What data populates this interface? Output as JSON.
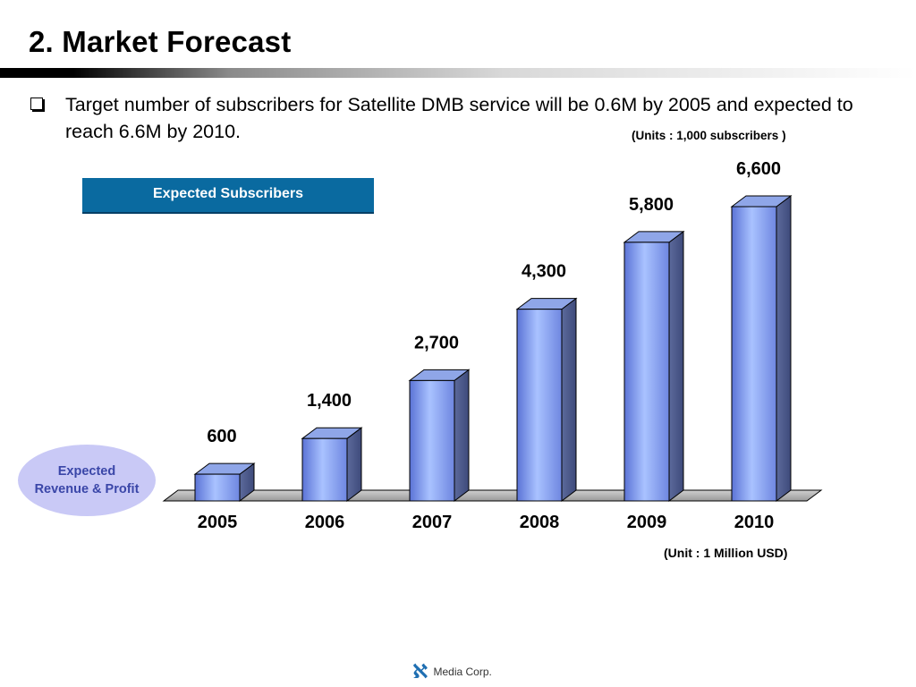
{
  "slide": {
    "title": "2.   Market Forecast",
    "bullet": "Target number of subscribers for Satellite DMB service will be 0.6M by 2005 and expected to reach 6.6M by 2010.",
    "units_top": "(Units : 1,000 subscribers )",
    "units_bottom": "(Unit : 1 Million USD)",
    "tab_label": "Expected Subscribers",
    "ellipse_label_line1": "Expected",
    "ellipse_label_line2": "Revenue & Profit",
    "logo_text": "Media Corp."
  },
  "colors": {
    "tab_bg": "#0a6aa0",
    "bar_front": "#7f9ff0",
    "bar_side": "#5a6aa0",
    "ellipse": "#c9c9f6"
  },
  "chart_data": {
    "type": "bar",
    "categories": [
      "2005",
      "2006",
      "2007",
      "2008",
      "2009",
      "2010"
    ],
    "values": [
      600,
      1400,
      2700,
      4300,
      5800,
      6600
    ],
    "data_labels": [
      "600",
      "1,400",
      "2,700",
      "4,300",
      "5,800",
      "6,600"
    ],
    "title": "",
    "xlabel": "",
    "ylabel": "",
    "ylim": [
      0,
      6600
    ],
    "grid": false,
    "legend": "none",
    "style": "3d-cylinder-like bars"
  }
}
